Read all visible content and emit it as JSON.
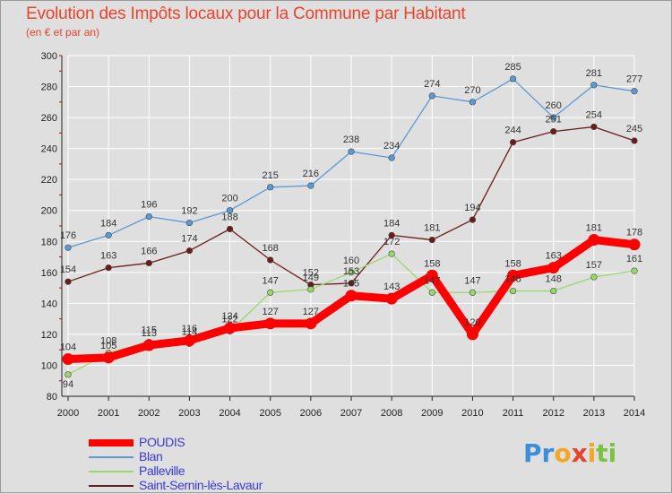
{
  "header": {
    "title": "Evolution des Impôts locaux pour la Commune par Habitant",
    "subtitle": "(en € et par an)"
  },
  "colors": {
    "background": "#dfdfdf",
    "title": "#e8442c",
    "grid": "#ffffff",
    "axis": "#222222",
    "axis_tick_red": "#cc0000",
    "legend_text": "#3a3ad8"
  },
  "chart_data": {
    "type": "line",
    "title": "Evolution des Impôts locaux pour la Commune par Habitant",
    "subtitle": "(en € et par an)",
    "xlabel": "",
    "ylabel": "",
    "x": [
      "2000",
      "2001",
      "2002",
      "2003",
      "2004",
      "2005",
      "2006",
      "2007",
      "2008",
      "2009",
      "2010",
      "2011",
      "2012",
      "2013",
      "2014"
    ],
    "ylim": [
      80,
      300
    ],
    "yticks": [
      80,
      100,
      120,
      140,
      160,
      180,
      200,
      220,
      240,
      260,
      280,
      300
    ],
    "grid": true,
    "legend_position": "bottom-left",
    "series": [
      {
        "name": "POUDIS",
        "color": "#ff0000",
        "values": [
          104,
          105,
          113,
          116,
          124,
          127,
          127,
          145,
          143,
          158,
          120,
          158,
          163,
          181,
          178
        ],
        "labels": [
          "104",
          "105",
          "113",
          "116",
          "124",
          "127",
          "127",
          "145",
          "143",
          "158",
          "120",
          "158",
          "163",
          "181",
          "178"
        ]
      },
      {
        "name": "Blan",
        "color": "#5b9ad5",
        "values": [
          176,
          184,
          196,
          192,
          200,
          215,
          216,
          238,
          234,
          274,
          270,
          285,
          260,
          281,
          277
        ],
        "labels": [
          "176",
          "184",
          "196",
          "192",
          "200",
          "215",
          "216",
          "238",
          "234",
          "274",
          "270",
          "285",
          "260",
          "281",
          "277"
        ]
      },
      {
        "name": "Palleville",
        "color": "#99d96b",
        "values": [
          94,
          108,
          115,
          114,
          122,
          147,
          149,
          160,
          172,
          147,
          147,
          148,
          148,
          157,
          161
        ],
        "labels": [
          "94",
          "108",
          "115",
          "114",
          "122",
          "147",
          "149",
          "160",
          "172",
          "147",
          "147",
          "148",
          "148",
          "157",
          "161"
        ]
      },
      {
        "name": "Saint-Sernin-lès-Lavaur",
        "color": "#6b1c1c",
        "values": [
          154,
          163,
          166,
          174,
          188,
          168,
          152,
          153,
          184,
          181,
          194,
          244,
          251,
          254,
          245
        ],
        "labels": [
          "154",
          "163",
          "166",
          "174",
          "188",
          "168",
          "152",
          "153",
          "184",
          "181",
          "194",
          "244",
          "251",
          "254",
          "245"
        ]
      }
    ]
  },
  "legend": {
    "items": [
      {
        "label": "POUDIS",
        "color": "#ff0000"
      },
      {
        "label": "Blan",
        "color": "#5b9ad5"
      },
      {
        "label": "Palleville",
        "color": "#99d96b"
      },
      {
        "label": "Saint-Sernin-lès-Lavaur",
        "color": "#6b1c1c"
      }
    ]
  },
  "logo": {
    "letters": [
      {
        "ch": "P",
        "color": "#3b8fd8"
      },
      {
        "ch": "r",
        "color": "#3b8fd8"
      },
      {
        "ch": "o",
        "color": "#f5a623"
      },
      {
        "ch": "x",
        "color": "#e8442c"
      },
      {
        "ch": "i",
        "color": "#f5a623"
      },
      {
        "ch": "t",
        "color": "#7cc242"
      },
      {
        "ch": "i",
        "color": "#7cc242"
      }
    ]
  }
}
